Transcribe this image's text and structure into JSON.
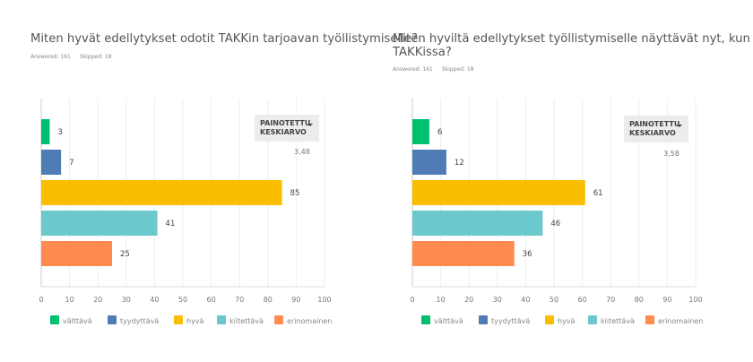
{
  "legend_labels": [
    "välttävä",
    "tyydyttävä",
    "hyvä",
    "kiitettävä",
    "erinomainen"
  ],
  "colors": [
    "#00bf6f",
    "#507cb6",
    "#f9be00",
    "#6bc8cd",
    "#ff8b4f"
  ],
  "weighted_label_1": "PAINOTETTU",
  "weighted_label_2": "KESKIARVO",
  "chart_data": [
    {
      "type": "bar",
      "orientation": "horizontal",
      "title": "Miten hyvät edellytykset odotit TAKKin tarjoavan työllistymiselle?",
      "answered": "Answered: 161",
      "skipped": "Skipped: 18",
      "categories": [
        "välttävä",
        "tyydyttävä",
        "hyvä",
        "kiitettävä",
        "erinomainen"
      ],
      "values": [
        3,
        7,
        85,
        41,
        25
      ],
      "xlim": [
        0,
        100
      ],
      "xticks": [
        0,
        10,
        20,
        30,
        40,
        50,
        60,
        70,
        80,
        90,
        100
      ],
      "grid": true,
      "legend": "bottom",
      "weighted_average": "3,48"
    },
    {
      "type": "bar",
      "orientation": "horizontal",
      "title": "Miten hyviltä edellytykset työllistymiselle näyttävät nyt, kun opiskelet TAKKissa?",
      "title_line1": "Miten hyviltä edellytykset työllistymiselle näyttävät nyt, kun opiskelet",
      "title_line2": "TAKKissa?",
      "answered": "Answered: 161",
      "skipped": "Skipped: 18",
      "categories": [
        "välttävä",
        "tyydyttävä",
        "hyvä",
        "kiitettävä",
        "erinomainen"
      ],
      "values": [
        6,
        12,
        61,
        46,
        36
      ],
      "xlim": [
        0,
        100
      ],
      "xticks": [
        0,
        10,
        20,
        30,
        40,
        50,
        60,
        70,
        80,
        90,
        100
      ],
      "grid": true,
      "legend": "bottom",
      "weighted_average": "3,58"
    }
  ]
}
